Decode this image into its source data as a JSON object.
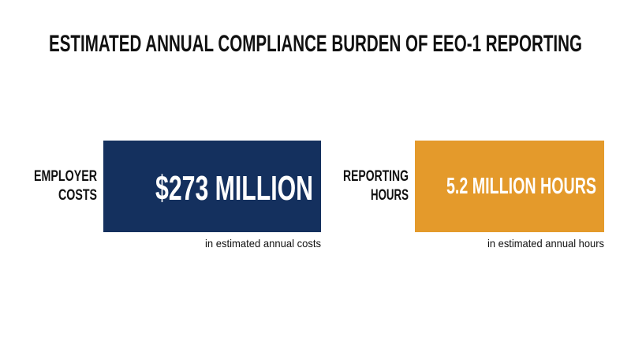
{
  "title": "ESTIMATED ANNUAL COMPLIANCE BURDEN OF EEO-1 REPORTING",
  "stats": [
    {
      "label_lines": [
        "EMPLOYER",
        "COSTS"
      ],
      "value": "$273 MILLION",
      "caption": "in estimated annual costs"
    },
    {
      "label_lines": [
        "REPORTING",
        "HOURS"
      ],
      "value": "5.2 MILLION HOURS",
      "caption": "in estimated annual hours"
    }
  ]
}
